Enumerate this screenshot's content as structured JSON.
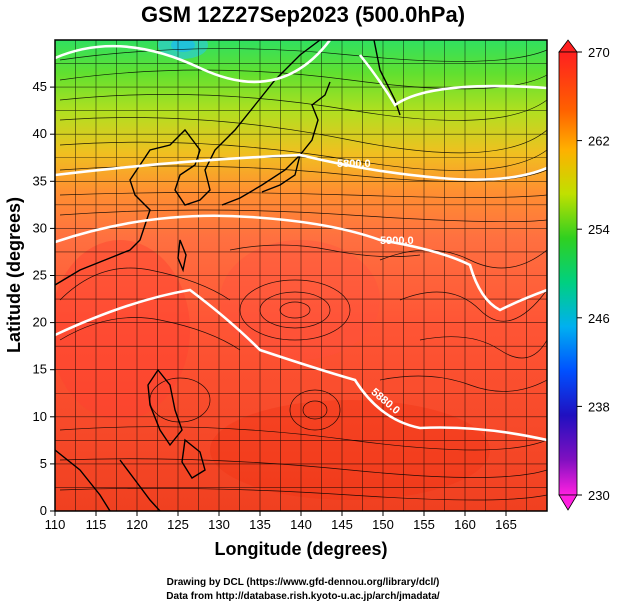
{
  "title": "GSM 12Z27Sep2023 (500.0hPa)",
  "xlabel": "Longitude (degrees)",
  "ylabel": "Latitude  (degrees)",
  "x_ticks": [
    "110",
    "115",
    "120",
    "125",
    "130",
    "135",
    "140",
    "145",
    "150",
    "155",
    "160",
    "165"
  ],
  "y_ticks": [
    "0",
    "5",
    "10",
    "15",
    "20",
    "25",
    "30",
    "35",
    "40",
    "45"
  ],
  "colorbar": {
    "labels": [
      "270",
      "262",
      "254",
      "246",
      "238",
      "230"
    ],
    "colors": [
      "#ff1a1a",
      "#ff6a00",
      "#ffd200",
      "#7cdc00",
      "#00c860",
      "#00b8f0",
      "#0070ff",
      "#3020d0",
      "#7010c0",
      "#ff20d0"
    ]
  },
  "contours": [
    {
      "label": "5800.0"
    },
    {
      "label": "5900.0"
    },
    {
      "label": "5880.0"
    }
  ],
  "credits": {
    "line1": "Drawing by DCL (https://www.gfd-dennou.org/library/dcl/)",
    "line2": "Data from http://database.rish.kyoto-u.ac.jp/arch/jmadata/"
  },
  "chart_data": {
    "type": "heatmap",
    "title": "GSM 12Z27Sep2023 (500.0hPa)",
    "xlabel": "Longitude (degrees)",
    "ylabel": "Latitude  (degrees)",
    "xlim": [
      110,
      170
    ],
    "ylim": [
      0,
      50
    ],
    "x_ticks": [
      110,
      115,
      120,
      125,
      130,
      135,
      140,
      145,
      150,
      155,
      160,
      165
    ],
    "y_ticks": [
      0,
      5,
      10,
      15,
      20,
      25,
      30,
      35,
      40,
      45
    ],
    "colorbar_range": [
      230,
      270
    ],
    "colorbar_ticks": [
      230,
      238,
      246,
      254,
      262,
      270
    ],
    "contour_levels": [
      5800,
      5880,
      5900
    ],
    "grid": true
  }
}
